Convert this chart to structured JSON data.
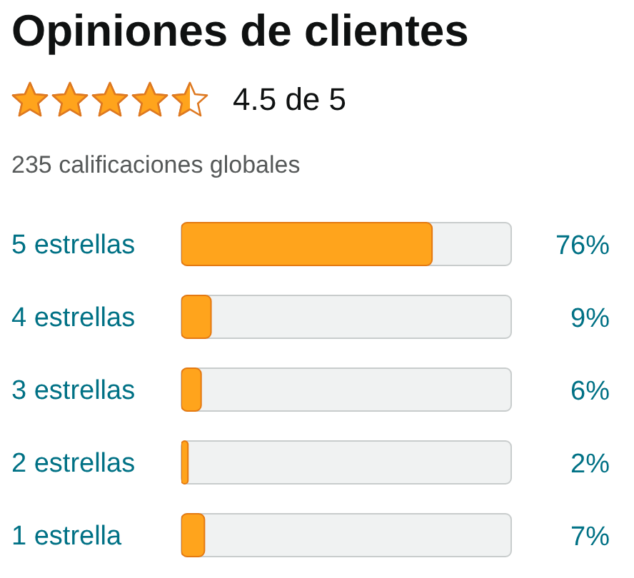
{
  "chart_data": {
    "type": "bar",
    "orientation": "horizontal",
    "title": "Opiniones de clientes",
    "subtitle": "4.5 de 5",
    "annotations": [
      "235 calificaciones globales"
    ],
    "categories": [
      "5 estrellas",
      "4 estrellas",
      "3 estrellas",
      "2 estrellas",
      "1 estrella"
    ],
    "values": [
      76,
      9,
      6,
      2,
      7
    ],
    "value_labels": [
      "76%",
      "9%",
      "6%",
      "2%",
      "7%"
    ],
    "color": "#ffa41c",
    "xlim": [
      0,
      100
    ],
    "tick_labels": "y"
  }
}
